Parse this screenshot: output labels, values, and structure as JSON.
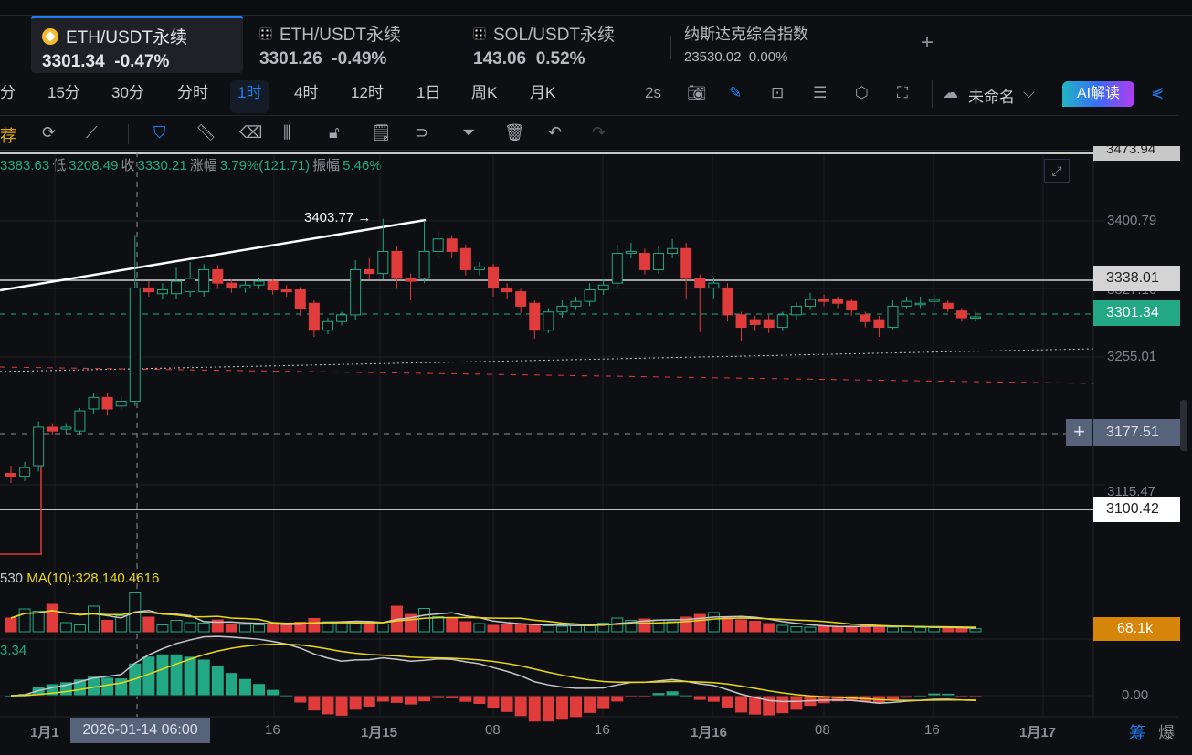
{
  "tabs": [
    {
      "name": "ETH/USDT永续",
      "price": "3301.34",
      "change": "-0.47%",
      "icon": "binance-icon",
      "active": true
    },
    {
      "name": "ETH/USDT永续",
      "price": "3301.26",
      "change": "-0.49%",
      "icon": "okx-icon"
    },
    {
      "name": "SOL/USDT永续",
      "price": "143.06",
      "change": "0.52%",
      "icon": "okx-icon"
    },
    {
      "name": "纳斯达克综合指数",
      "price": "23530.02",
      "change": "0.00%"
    }
  ],
  "add_tab": "+",
  "intervals": [
    "分",
    "15分",
    "30分",
    "分时",
    "1时",
    "4时",
    "12时",
    "1日",
    "周K",
    "月K"
  ],
  "selected_interval": "1时",
  "toolbar": {
    "refresh": "2s",
    "layout_name": "未命名",
    "ai_label": "AI解读"
  },
  "drawing_tools": {
    "left_label": "荐",
    "icons": [
      "replay-icon",
      "line-tool-icon",
      "bookmark-icon",
      "ruler-icon",
      "eraser-icon",
      "candles-icon",
      "unlock-icon",
      "note-icon",
      "magnet-icon",
      "filter-icon",
      "trash-icon",
      "undo-icon",
      "redo-icon"
    ]
  },
  "ohlc": {
    "high": "3383.63",
    "low_label": "低",
    "low": "3208.49",
    "close_label": "收",
    "close": "3330.21",
    "change_label": "涨幅",
    "change": "3.79%(121.71)",
    "amp_label": "振幅",
    "amp": "5.46%"
  },
  "annotation": "3403.77 →",
  "price_axis": [
    "3473.94",
    "3400.79",
    "3327.16",
    "3255.01",
    "3115.47"
  ],
  "price_labels": {
    "line1": "3338.01",
    "current": "3301.34",
    "cross": "3177.51",
    "line2": "3100.42",
    "volume": "68.1k",
    "macd": "0.00"
  },
  "volume_legend": {
    "prefix": "530",
    "ma10": "MA(10):328,140.4616"
  },
  "macd_legend": "3.34",
  "time_axis": [
    "1月1",
    "16",
    "1月15",
    "08",
    "16",
    "1月16",
    "08",
    "16",
    "1月17"
  ],
  "crosshair_time": "2026-01-14 06:00",
  "bottom_right": [
    "筹",
    "爆"
  ],
  "colors": {
    "up": "#22a884",
    "down": "#e03c3c",
    "accent": "#1f7cf2",
    "ma_yellow": "#e8d81a",
    "volume_label": "#d4850a"
  },
  "chart_data": {
    "type": "candlestick",
    "interval": "1时",
    "ylim": [
      3090,
      3480
    ],
    "candles_ochl_order": "open,close,high,low",
    "candles": [
      [
        3138,
        3135,
        3146,
        3128
      ],
      [
        3135,
        3144,
        3150,
        3130
      ],
      [
        3146,
        3186,
        3192,
        3140
      ],
      [
        3186,
        3182,
        3190,
        3178
      ],
      [
        3184,
        3186,
        3190,
        3180
      ],
      [
        3182,
        3203,
        3206,
        3178
      ],
      [
        3205,
        3217,
        3222,
        3200
      ],
      [
        3217,
        3205,
        3222,
        3198
      ],
      [
        3208,
        3213,
        3218,
        3204
      ],
      [
        3213,
        3331,
        3386,
        3208
      ],
      [
        3331,
        3327,
        3338,
        3322
      ],
      [
        3325,
        3329,
        3336,
        3320
      ],
      [
        3325,
        3338,
        3352,
        3320
      ],
      [
        3327,
        3341,
        3358,
        3322
      ],
      [
        3327,
        3350,
        3356,
        3322
      ],
      [
        3350,
        3336,
        3355,
        3330
      ],
      [
        3336,
        3331,
        3340,
        3326
      ],
      [
        3331,
        3334,
        3338,
        3326
      ],
      [
        3334,
        3338,
        3342,
        3330
      ],
      [
        3338,
        3329,
        3340,
        3324
      ],
      [
        3329,
        3327,
        3334,
        3322
      ],
      [
        3329,
        3310,
        3332,
        3302
      ],
      [
        3315,
        3287,
        3318,
        3280
      ],
      [
        3287,
        3296,
        3300,
        3283
      ],
      [
        3296,
        3303,
        3306,
        3292
      ],
      [
        3303,
        3350,
        3360,
        3298
      ],
      [
        3350,
        3346,
        3362,
        3340
      ],
      [
        3346,
        3369,
        3403,
        3340
      ],
      [
        3369,
        3341,
        3375,
        3330
      ],
      [
        3341,
        3338,
        3346,
        3318
      ],
      [
        3341,
        3369,
        3401,
        3336
      ],
      [
        3369,
        3382,
        3390,
        3362
      ],
      [
        3382,
        3369,
        3386,
        3362
      ],
      [
        3372,
        3350,
        3376,
        3344
      ],
      [
        3350,
        3353,
        3358,
        3344
      ],
      [
        3353,
        3331,
        3356,
        3322
      ],
      [
        3331,
        3327,
        3336,
        3320
      ],
      [
        3327,
        3312,
        3330,
        3305
      ],
      [
        3315,
        3287,
        3318,
        3278
      ],
      [
        3287,
        3306,
        3310,
        3284
      ],
      [
        3306,
        3312,
        3318,
        3300
      ],
      [
        3312,
        3317,
        3322,
        3308
      ],
      [
        3317,
        3329,
        3336,
        3312
      ],
      [
        3329,
        3334,
        3340,
        3324
      ],
      [
        3336,
        3367,
        3376,
        3330
      ],
      [
        3367,
        3369,
        3378,
        3362
      ],
      [
        3367,
        3350,
        3372,
        3345
      ],
      [
        3350,
        3367,
        3374,
        3346
      ],
      [
        3367,
        3372,
        3382,
        3362
      ],
      [
        3372,
        3341,
        3378,
        3320
      ],
      [
        3341,
        3331,
        3345,
        3285
      ],
      [
        3331,
        3336,
        3342,
        3320
      ],
      [
        3331,
        3303,
        3336,
        3296
      ],
      [
        3303,
        3290,
        3306,
        3276
      ],
      [
        3298,
        3293,
        3302,
        3286
      ],
      [
        3298,
        3290,
        3303,
        3284
      ],
      [
        3290,
        3303,
        3306,
        3286
      ],
      [
        3303,
        3312,
        3316,
        3298
      ],
      [
        3312,
        3319,
        3326,
        3308
      ],
      [
        3319,
        3317,
        3324,
        3312
      ],
      [
        3319,
        3315,
        3322,
        3310
      ],
      [
        3317,
        3308,
        3320,
        3302
      ],
      [
        3303,
        3296,
        3306,
        3290
      ],
      [
        3298,
        3290,
        3302,
        3280
      ],
      [
        3290,
        3312,
        3318,
        3288
      ],
      [
        3312,
        3317,
        3322,
        3310
      ],
      [
        3315,
        3315,
        3322,
        3310
      ],
      [
        3317,
        3319,
        3324,
        3312
      ],
      [
        3315,
        3310,
        3318,
        3306
      ],
      [
        3307,
        3300,
        3310,
        3296
      ],
      [
        3300,
        3301,
        3306,
        3296
      ]
    ],
    "volume_k": [
      300,
      500,
      450,
      600,
      200,
      150,
      560,
      250,
      350,
      850,
      320,
      150,
      250,
      200,
      190,
      260,
      170,
      160,
      150,
      150,
      170,
      210,
      290,
      220,
      200,
      230,
      190,
      170,
      560,
      380,
      510,
      330,
      300,
      220,
      180,
      140,
      160,
      170,
      140,
      130,
      120,
      130,
      160,
      190,
      300,
      250,
      280,
      260,
      220,
      320,
      380,
      420,
      300,
      260,
      230,
      180,
      140,
      110,
      100,
      120,
      110,
      120,
      150,
      110,
      100,
      110,
      90,
      90,
      80,
      75,
      68
    ]
  }
}
